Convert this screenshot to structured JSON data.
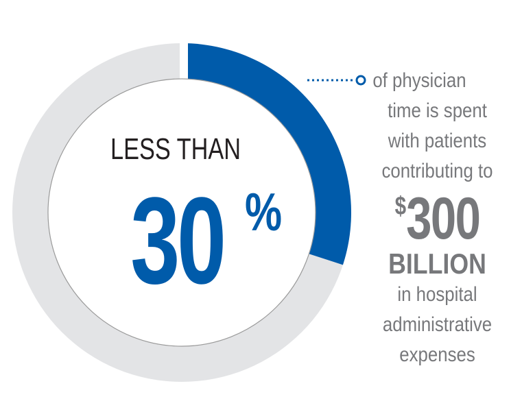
{
  "stat": {
    "prefix": "LESS THAN",
    "value": "30",
    "unit": "%",
    "fraction": 0.3
  },
  "description": {
    "lines": [
      "of physician",
      "time is spent",
      "with patients",
      "contributing to"
    ]
  },
  "cost": {
    "currency": "$",
    "amount": "300",
    "unit": "BILLION",
    "lines": [
      "in hospital",
      "administrative",
      "expenses"
    ]
  },
  "colors": {
    "accent": "#005baa",
    "ring_track": "#e3e4e6",
    "text_gray": "#77787b",
    "heading": "#231f20"
  },
  "icons": {
    "connector": "dotted-connector-line",
    "marker": "hollow-circle-marker"
  }
}
